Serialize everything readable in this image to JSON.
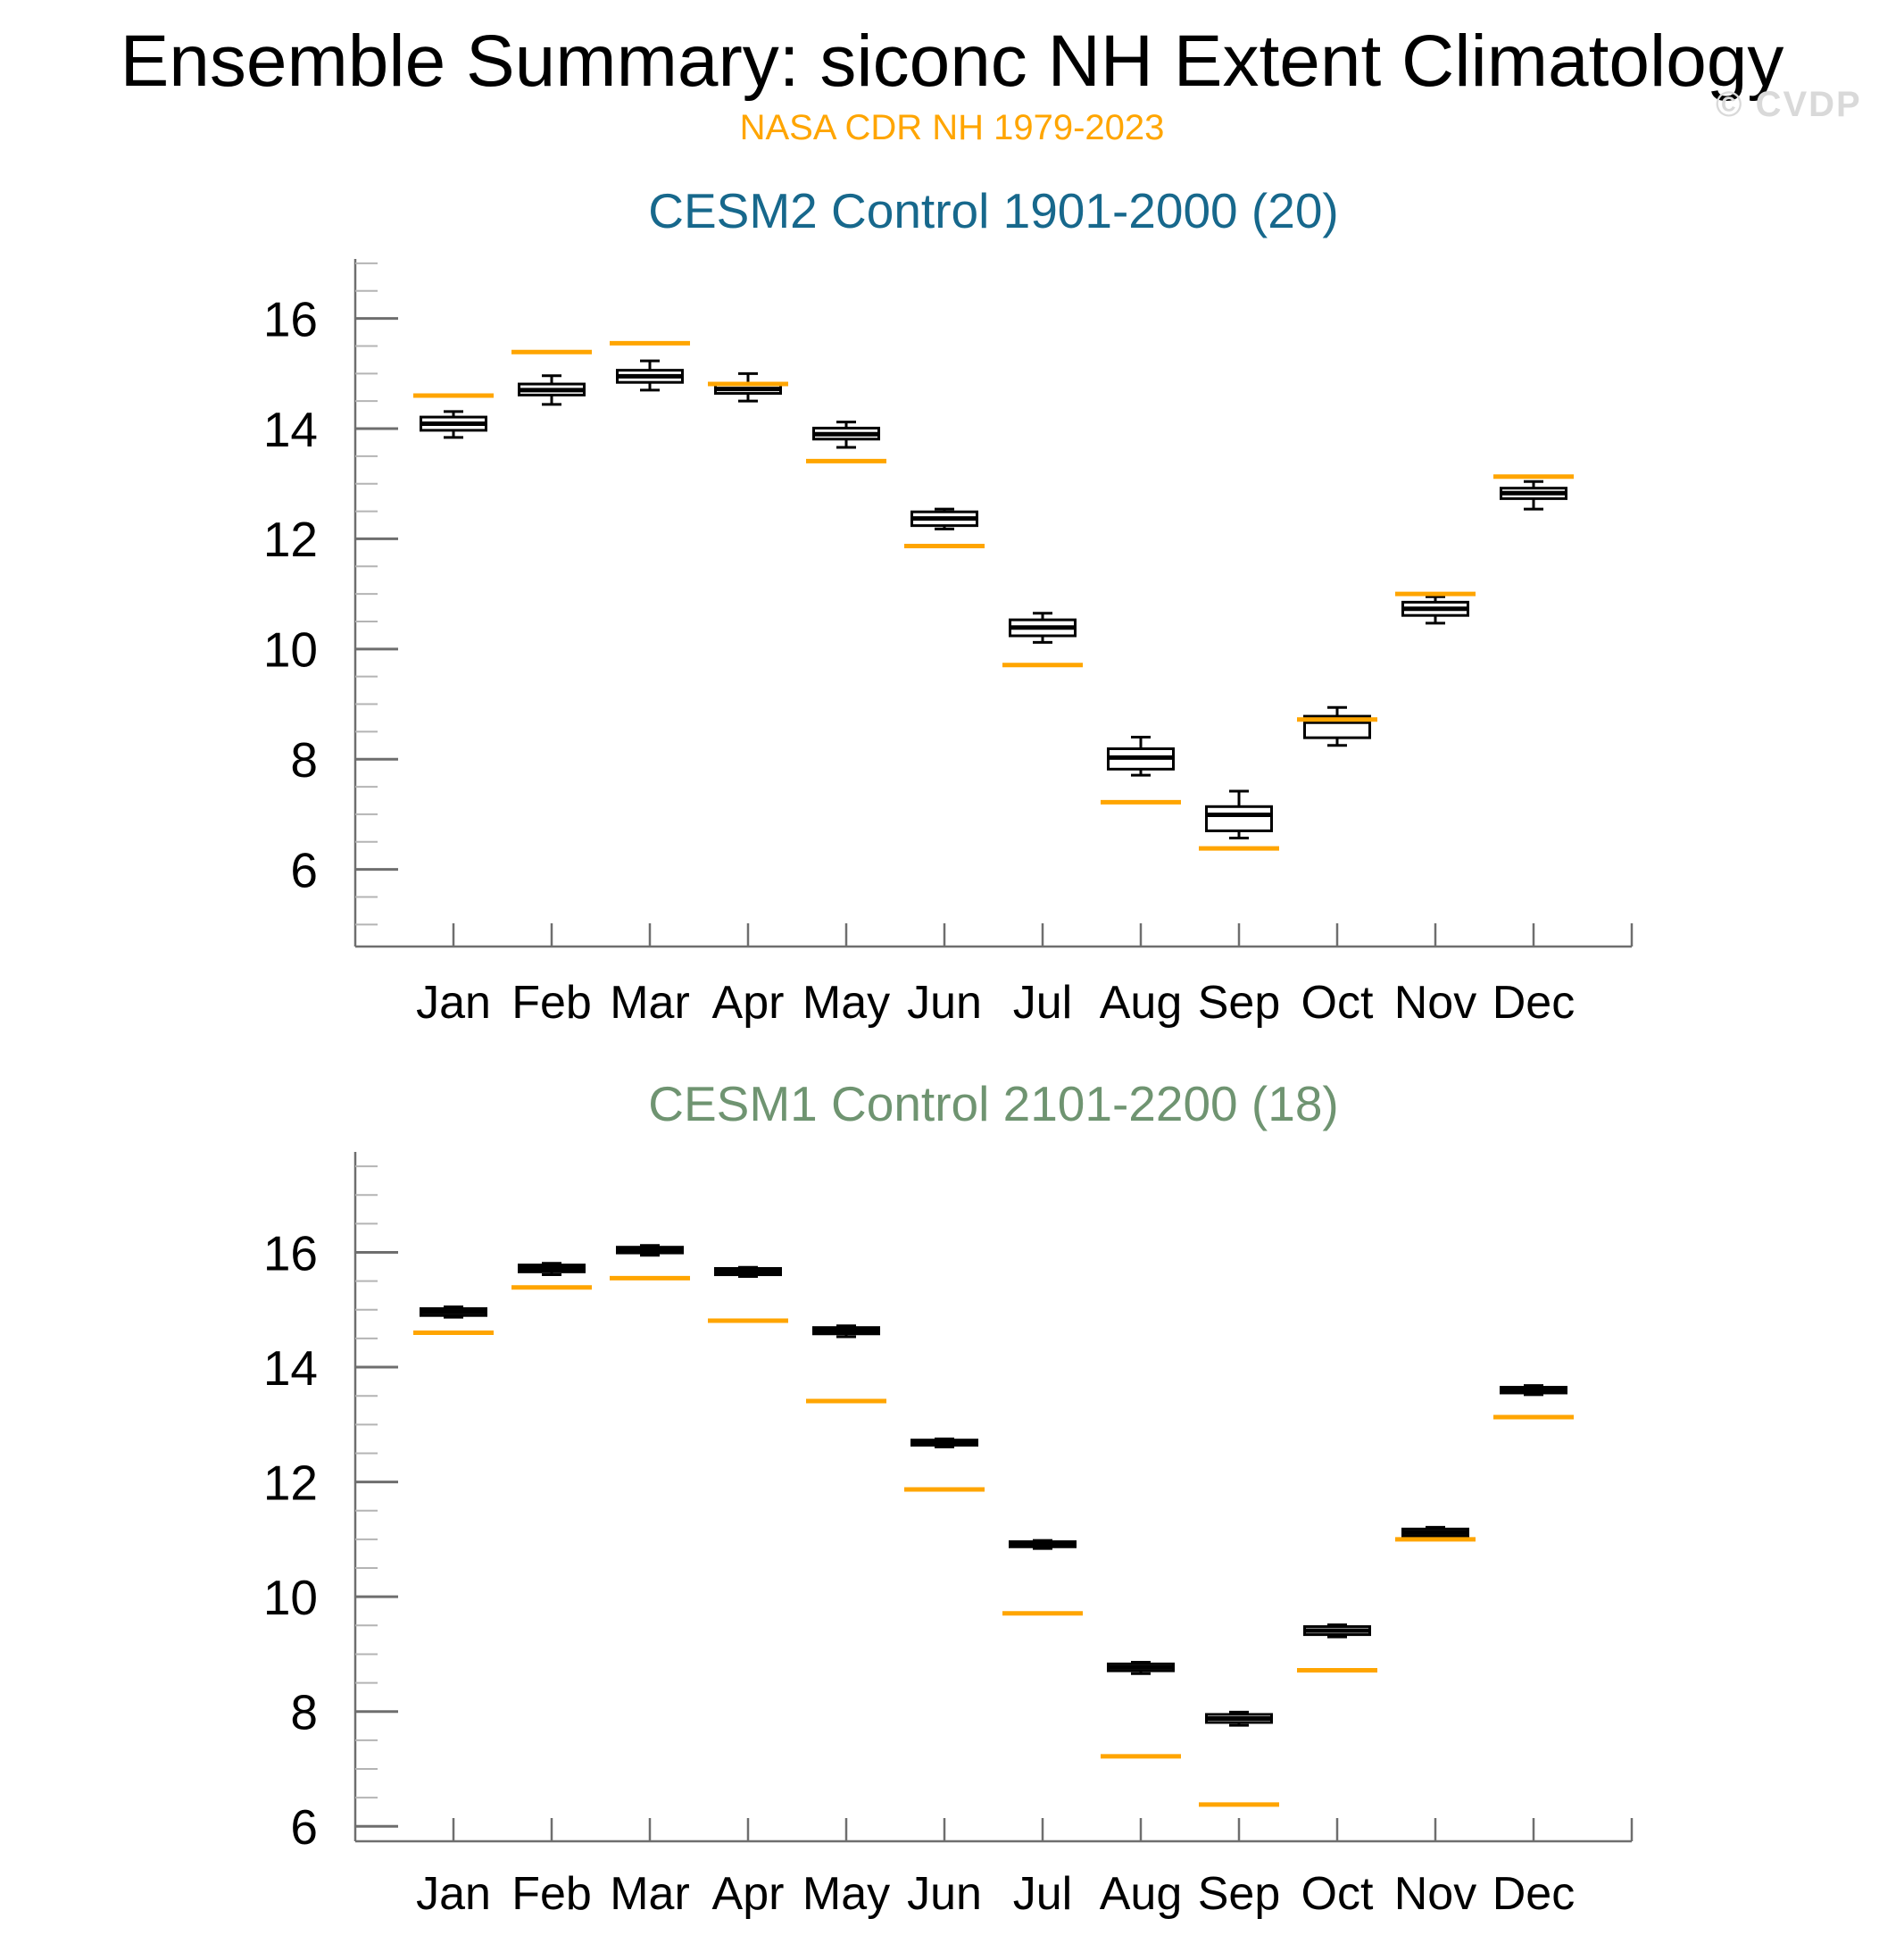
{
  "header": {
    "title": "Ensemble Summary: siconc NH Extent Climatology",
    "subtitle": "NASA CDR NH 1979-2023",
    "watermark": "© CVDP"
  },
  "colors": {
    "title": "#000000",
    "subtitle": "#FFA500",
    "watermark": "#d9d9d9",
    "obs_line": "#FFA500",
    "box_line": "#000000",
    "axis": "#6e6e6e",
    "minor_tick": "#b4b4b4",
    "tick_label": "#000000"
  },
  "months": [
    "Jan",
    "Feb",
    "Mar",
    "Apr",
    "May",
    "Jun",
    "Jul",
    "Aug",
    "Sep",
    "Oct",
    "Nov",
    "Dec"
  ],
  "y_axis": {
    "major_ticks": [
      6,
      8,
      10,
      12,
      14,
      16
    ],
    "minor_step": 0.5
  },
  "chart_data": [
    {
      "type": "box",
      "title": "CESM2 Control 1901-2000 (20)",
      "title_color": "#17688c",
      "ensemble_size": 20,
      "categories": [
        "Jan",
        "Feb",
        "Mar",
        "Apr",
        "May",
        "Jun",
        "Jul",
        "Aug",
        "Sep",
        "Oct",
        "Nov",
        "Dec"
      ],
      "ylim": [
        4.6,
        17.08
      ],
      "grid": false,
      "obs": {
        "name": "NASA CDR NH 1979-2023",
        "color": "#FFA500",
        "values": [
          14.6,
          15.39,
          15.55,
          14.81,
          13.41,
          11.87,
          9.71,
          7.22,
          6.38,
          8.72,
          11.0,
          13.13
        ]
      },
      "boxes": [
        {
          "lo": 13.84,
          "q1": 13.97,
          "med": 14.09,
          "q3": 14.21,
          "hi": 14.31
        },
        {
          "lo": 14.44,
          "q1": 14.61,
          "med": 14.7,
          "q3": 14.81,
          "hi": 14.96
        },
        {
          "lo": 14.7,
          "q1": 14.84,
          "med": 14.95,
          "q3": 15.06,
          "hi": 15.23
        },
        {
          "lo": 14.5,
          "q1": 14.64,
          "med": 14.72,
          "q3": 14.8,
          "hi": 15.0
        },
        {
          "lo": 13.66,
          "q1": 13.81,
          "med": 13.9,
          "q3": 14.01,
          "hi": 14.12
        },
        {
          "lo": 12.18,
          "q1": 12.24,
          "med": 12.37,
          "q3": 12.49,
          "hi": 12.54
        },
        {
          "lo": 10.12,
          "q1": 10.24,
          "med": 10.39,
          "q3": 10.53,
          "hi": 10.65
        },
        {
          "lo": 7.71,
          "q1": 7.82,
          "med": 8.03,
          "q3": 8.19,
          "hi": 8.4
        },
        {
          "lo": 6.57,
          "q1": 6.7,
          "med": 6.99,
          "q3": 7.14,
          "hi": 7.42
        },
        {
          "lo": 8.25,
          "q1": 8.39,
          "med": 8.68,
          "q3": 8.78,
          "hi": 8.94
        },
        {
          "lo": 10.47,
          "q1": 10.61,
          "med": 10.73,
          "q3": 10.85,
          "hi": 10.95
        },
        {
          "lo": 12.54,
          "q1": 12.73,
          "med": 12.83,
          "q3": 12.92,
          "hi": 13.04
        }
      ]
    },
    {
      "type": "box",
      "title": "CESM1 Control 2101-2200 (18)",
      "title_color": "#6f9471",
      "ensemble_size": 18,
      "categories": [
        "Jan",
        "Feb",
        "Mar",
        "Apr",
        "May",
        "Jun",
        "Jul",
        "Aug",
        "Sep",
        "Oct",
        "Nov",
        "Dec"
      ],
      "ylim": [
        5.74,
        17.75
      ],
      "grid": false,
      "obs": {
        "name": "NASA CDR NH 1979-2023",
        "color": "#FFA500",
        "values": [
          14.6,
          15.39,
          15.55,
          14.81,
          13.41,
          11.87,
          9.71,
          7.22,
          6.38,
          8.72,
          11.0,
          13.13
        ]
      },
      "boxes": [
        {
          "lo": 14.87,
          "q1": 14.9,
          "med": 14.96,
          "q3": 15.02,
          "hi": 15.05
        },
        {
          "lo": 15.61,
          "q1": 15.66,
          "med": 15.72,
          "q3": 15.78,
          "hi": 15.81
        },
        {
          "lo": 15.95,
          "q1": 15.99,
          "med": 16.04,
          "q3": 16.09,
          "hi": 16.12
        },
        {
          "lo": 15.58,
          "q1": 15.61,
          "med": 15.66,
          "q3": 15.72,
          "hi": 15.74
        },
        {
          "lo": 14.53,
          "q1": 14.58,
          "med": 14.63,
          "q3": 14.69,
          "hi": 14.72
        },
        {
          "lo": 12.61,
          "q1": 12.64,
          "med": 12.68,
          "q3": 12.73,
          "hi": 12.75
        },
        {
          "lo": 10.84,
          "q1": 10.87,
          "med": 10.91,
          "q3": 10.96,
          "hi": 10.98
        },
        {
          "lo": 8.66,
          "q1": 8.71,
          "med": 8.77,
          "q3": 8.83,
          "hi": 8.86
        },
        {
          "lo": 7.76,
          "q1": 7.81,
          "med": 7.88,
          "q3": 7.95,
          "hi": 7.99
        },
        {
          "lo": 9.3,
          "q1": 9.34,
          "med": 9.41,
          "q3": 9.48,
          "hi": 9.51
        },
        {
          "lo": 11.02,
          "q1": 11.06,
          "med": 11.12,
          "q3": 11.18,
          "hi": 11.21
        },
        {
          "lo": 13.52,
          "q1": 13.55,
          "med": 13.6,
          "q3": 13.65,
          "hi": 13.68
        }
      ]
    }
  ]
}
